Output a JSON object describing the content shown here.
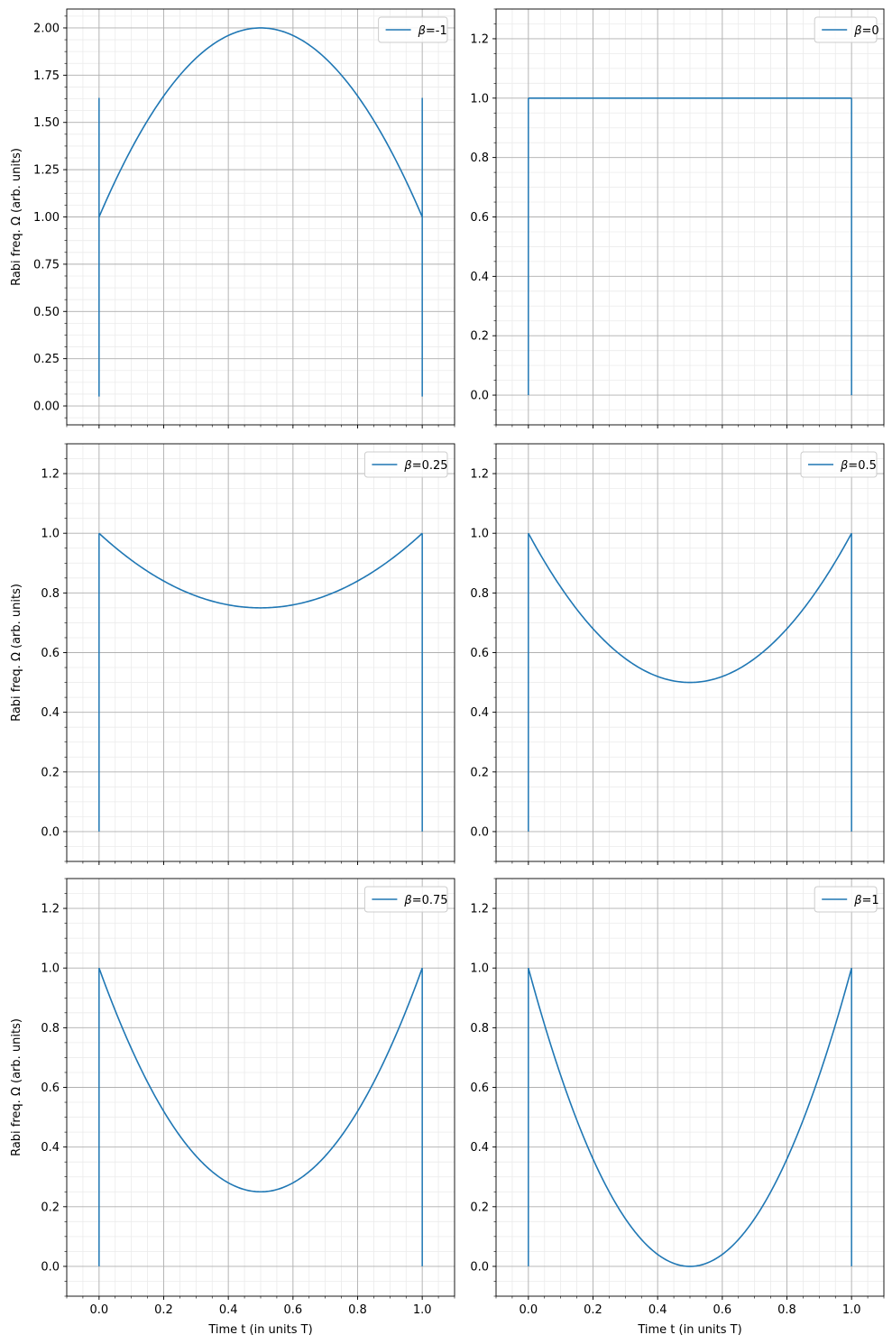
{
  "chart_data": [
    {
      "type": "line",
      "legend": {
        "symbol": "β",
        "value": "-1",
        "placement": "top-right"
      },
      "beta": -1,
      "xlim": [
        -0.1,
        1.1
      ],
      "ylim": [
        -0.1,
        2.1
      ],
      "xticks": [
        0.0,
        0.2,
        0.4,
        0.6,
        0.8,
        1.0
      ],
      "yticks": [
        0.0,
        0.25,
        0.5,
        0.75,
        1.0,
        1.25,
        1.5,
        1.75,
        2.0
      ],
      "ytick_labels": [
        "0.00",
        "0.25",
        "0.50",
        "0.75",
        "1.00",
        "1.25",
        "1.50",
        "1.75",
        "2.00"
      ],
      "ylabel": "Rabi freq. Ω (arb. units)",
      "xlabel": "",
      "vlines": [
        {
          "x": 0.0,
          "ymin": 0.05,
          "ymax": 1.63
        },
        {
          "x": 1.0,
          "ymin": 0.05,
          "ymax": 1.63
        }
      ],
      "curve": {
        "x": [
          0.0,
          0.1,
          0.2,
          0.3,
          0.4,
          0.5,
          0.6,
          0.7,
          0.8,
          0.9,
          1.0
        ],
        "y": [
          1.0,
          1.36,
          1.64,
          1.84,
          1.96,
          2.0,
          1.96,
          1.84,
          1.64,
          1.36,
          1.0
        ]
      },
      "grid": true,
      "minor_grid": true
    },
    {
      "type": "line",
      "legend": {
        "symbol": "β",
        "value": "0",
        "placement": "top-right"
      },
      "beta": 0,
      "xlim": [
        -0.1,
        1.1
      ],
      "ylim": [
        -0.1,
        1.3
      ],
      "xticks": [
        0.0,
        0.2,
        0.4,
        0.6,
        0.8,
        1.0
      ],
      "yticks": [
        0.0,
        0.2,
        0.4,
        0.6,
        0.8,
        1.0,
        1.2
      ],
      "ytick_labels": [
        "0.0",
        "0.2",
        "0.4",
        "0.6",
        "0.8",
        "1.0",
        "1.2"
      ],
      "ylabel": "",
      "xlabel": "",
      "vlines": [
        {
          "x": 0.0,
          "ymin": 0.0,
          "ymax": 1.0
        },
        {
          "x": 1.0,
          "ymin": 0.0,
          "ymax": 1.0
        }
      ],
      "curve": {
        "x": [
          0.0,
          0.5,
          1.0
        ],
        "y": [
          1.0,
          1.0,
          1.0
        ]
      },
      "grid": true,
      "minor_grid": true
    },
    {
      "type": "line",
      "legend": {
        "symbol": "β",
        "value": "0.25",
        "placement": "top-right"
      },
      "beta": 0.25,
      "xlim": [
        -0.1,
        1.1
      ],
      "ylim": [
        -0.1,
        1.3
      ],
      "xticks": [
        0.0,
        0.2,
        0.4,
        0.6,
        0.8,
        1.0
      ],
      "yticks": [
        0.0,
        0.2,
        0.4,
        0.6,
        0.8,
        1.0,
        1.2
      ],
      "ytick_labels": [
        "0.0",
        "0.2",
        "0.4",
        "0.6",
        "0.8",
        "1.0",
        "1.2"
      ],
      "ylabel": "Rabi freq. Ω (arb. units)",
      "xlabel": "",
      "vlines": [
        {
          "x": 0.0,
          "ymin": 0.0,
          "ymax": 1.0
        },
        {
          "x": 1.0,
          "ymin": 0.0,
          "ymax": 1.0
        }
      ],
      "curve": {
        "x": [
          0.0,
          0.1,
          0.2,
          0.3,
          0.4,
          0.5,
          0.6,
          0.7,
          0.8,
          0.9,
          1.0
        ],
        "y": [
          1.0,
          0.91,
          0.84,
          0.79,
          0.76,
          0.75,
          0.76,
          0.79,
          0.84,
          0.91,
          1.0
        ]
      },
      "grid": true,
      "minor_grid": true
    },
    {
      "type": "line",
      "legend": {
        "symbol": "β",
        "value": "0.5",
        "placement": "top-right"
      },
      "beta": 0.5,
      "xlim": [
        -0.1,
        1.1
      ],
      "ylim": [
        -0.1,
        1.3
      ],
      "xticks": [
        0.0,
        0.2,
        0.4,
        0.6,
        0.8,
        1.0
      ],
      "yticks": [
        0.0,
        0.2,
        0.4,
        0.6,
        0.8,
        1.0,
        1.2
      ],
      "ytick_labels": [
        "0.0",
        "0.2",
        "0.4",
        "0.6",
        "0.8",
        "1.0",
        "1.2"
      ],
      "ylabel": "",
      "xlabel": "",
      "vlines": [
        {
          "x": 0.0,
          "ymin": 0.0,
          "ymax": 1.0
        },
        {
          "x": 1.0,
          "ymin": 0.0,
          "ymax": 1.0
        }
      ],
      "curve": {
        "x": [
          0.0,
          0.1,
          0.2,
          0.3,
          0.4,
          0.5,
          0.6,
          0.7,
          0.8,
          0.9,
          1.0
        ],
        "y": [
          1.0,
          0.82,
          0.68,
          0.58,
          0.52,
          0.5,
          0.52,
          0.58,
          0.68,
          0.82,
          1.0
        ]
      },
      "grid": true,
      "minor_grid": true
    },
    {
      "type": "line",
      "legend": {
        "symbol": "β",
        "value": "0.75",
        "placement": "top-right"
      },
      "beta": 0.75,
      "xlim": [
        -0.1,
        1.1
      ],
      "ylim": [
        -0.1,
        1.3
      ],
      "xticks": [
        0.0,
        0.2,
        0.4,
        0.6,
        0.8,
        1.0
      ],
      "xtick_labels": [
        "0.0",
        "0.2",
        "0.4",
        "0.6",
        "0.8",
        "1.0"
      ],
      "yticks": [
        0.0,
        0.2,
        0.4,
        0.6,
        0.8,
        1.0,
        1.2
      ],
      "ytick_labels": [
        "0.0",
        "0.2",
        "0.4",
        "0.6",
        "0.8",
        "1.0",
        "1.2"
      ],
      "ylabel": "Rabi freq. Ω (arb. units)",
      "xlabel": "Time t (in units T)",
      "vlines": [
        {
          "x": 0.0,
          "ymin": 0.0,
          "ymax": 1.0
        },
        {
          "x": 1.0,
          "ymin": 0.0,
          "ymax": 1.0
        }
      ],
      "curve": {
        "x": [
          0.0,
          0.1,
          0.2,
          0.3,
          0.4,
          0.5,
          0.6,
          0.7,
          0.8,
          0.9,
          1.0
        ],
        "y": [
          1.0,
          0.73,
          0.52,
          0.37,
          0.28,
          0.25,
          0.28,
          0.37,
          0.52,
          0.73,
          1.0
        ]
      },
      "grid": true,
      "minor_grid": true
    },
    {
      "type": "line",
      "legend": {
        "symbol": "β",
        "value": "1",
        "placement": "top-right"
      },
      "beta": 1,
      "xlim": [
        -0.1,
        1.1
      ],
      "ylim": [
        -0.1,
        1.3
      ],
      "xticks": [
        0.0,
        0.2,
        0.4,
        0.6,
        0.8,
        1.0
      ],
      "xtick_labels": [
        "0.0",
        "0.2",
        "0.4",
        "0.6",
        "0.8",
        "1.0"
      ],
      "yticks": [
        0.0,
        0.2,
        0.4,
        0.6,
        0.8,
        1.0,
        1.2
      ],
      "ytick_labels": [
        "0.0",
        "0.2",
        "0.4",
        "0.6",
        "0.8",
        "1.0",
        "1.2"
      ],
      "ylabel": "",
      "xlabel": "Time t (in units T)",
      "vlines": [
        {
          "x": 0.0,
          "ymin": 0.0,
          "ymax": 1.0
        },
        {
          "x": 1.0,
          "ymin": 0.0,
          "ymax": 1.0
        }
      ],
      "curve": {
        "x": [
          0.0,
          0.1,
          0.2,
          0.3,
          0.4,
          0.5,
          0.6,
          0.7,
          0.8,
          0.9,
          1.0
        ],
        "y": [
          1.0,
          0.64,
          0.36,
          0.16,
          0.04,
          0.0,
          0.04,
          0.16,
          0.36,
          0.64,
          1.0
        ]
      },
      "grid": true,
      "minor_grid": true
    }
  ],
  "colors": {
    "line": "#1f77b4",
    "major_grid": "#b0b0b0",
    "minor_grid": "#ebebeb",
    "axis": "#000000"
  }
}
